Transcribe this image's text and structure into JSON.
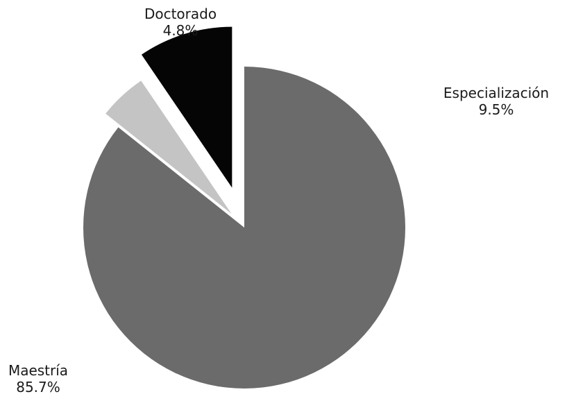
{
  "chart_data": {
    "type": "pie",
    "slices": [
      {
        "label": "Maestría",
        "value": 85.7,
        "value_label": "85.7%",
        "color": "#6b6b6b",
        "exploded": false
      },
      {
        "label": "Doctorado",
        "value": 4.8,
        "value_label": "4.8%",
        "color": "#c4c4c4",
        "exploded": true
      },
      {
        "label": "Especialización",
        "value": 9.5,
        "value_label": "9.5%",
        "color": "#050505",
        "exploded": true
      }
    ],
    "start_angle_deg": 0,
    "direction": "clockwise",
    "legend": "none"
  }
}
